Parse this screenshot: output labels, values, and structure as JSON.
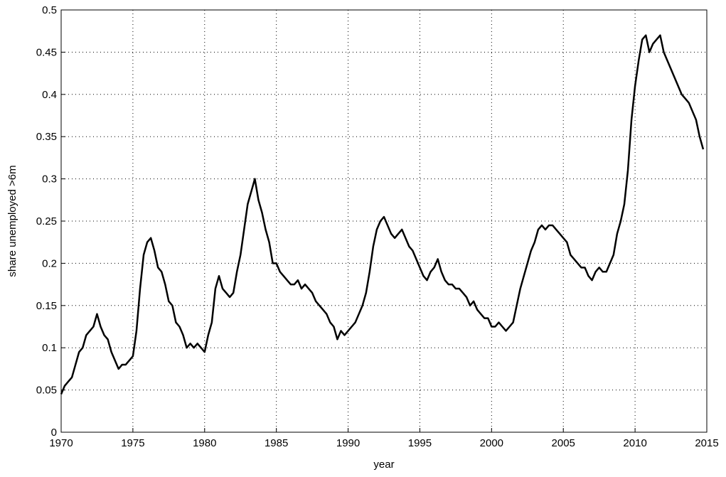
{
  "chart_data": {
    "type": "line",
    "xlabel": "year",
    "ylabel": "share unemployed >6m",
    "xlim": [
      1970,
      2015
    ],
    "xticks": [
      1970,
      1975,
      1980,
      1985,
      1990,
      1995,
      2000,
      2005,
      2010,
      2015
    ],
    "ylim": [
      0,
      0.5
    ],
    "yticks": [
      0,
      0.05,
      0.1,
      0.15,
      0.2,
      0.25,
      0.3,
      0.35,
      0.4,
      0.45,
      0.5
    ],
    "grid": true,
    "x": [
      1970,
      1970.25,
      1970.5,
      1970.75,
      1971,
      1971.25,
      1971.5,
      1971.75,
      1972,
      1972.25,
      1972.5,
      1972.75,
      1973,
      1973.25,
      1973.5,
      1973.75,
      1974,
      1974.25,
      1974.5,
      1974.75,
      1975,
      1975.25,
      1975.5,
      1975.75,
      1976,
      1976.25,
      1976.5,
      1976.75,
      1977,
      1977.25,
      1977.5,
      1977.75,
      1978,
      1978.25,
      1978.5,
      1978.75,
      1979,
      1979.25,
      1979.5,
      1979.75,
      1980,
      1980.25,
      1980.5,
      1980.75,
      1981,
      1981.25,
      1981.5,
      1981.75,
      1982,
      1982.25,
      1982.5,
      1982.75,
      1983,
      1983.25,
      1983.5,
      1983.75,
      1984,
      1984.25,
      1984.5,
      1984.75,
      1985,
      1985.25,
      1985.5,
      1985.75,
      1986,
      1986.25,
      1986.5,
      1986.75,
      1987,
      1987.25,
      1987.5,
      1987.75,
      1988,
      1988.25,
      1988.5,
      1988.75,
      1989,
      1989.25,
      1989.5,
      1989.75,
      1990,
      1990.25,
      1990.5,
      1990.75,
      1991,
      1991.25,
      1991.5,
      1991.75,
      1992,
      1992.25,
      1992.5,
      1992.75,
      1993,
      1993.25,
      1993.5,
      1993.75,
      1994,
      1994.25,
      1994.5,
      1994.75,
      1995,
      1995.25,
      1995.5,
      1995.75,
      1996,
      1996.25,
      1996.5,
      1996.75,
      1997,
      1997.25,
      1997.5,
      1997.75,
      1998,
      1998.25,
      1998.5,
      1998.75,
      1999,
      1999.25,
      1999.5,
      1999.75,
      2000,
      2000.25,
      2000.5,
      2000.75,
      2001,
      2001.25,
      2001.5,
      2001.75,
      2002,
      2002.25,
      2002.5,
      2002.75,
      2003,
      2003.25,
      2003.5,
      2003.75,
      2004,
      2004.25,
      2004.5,
      2004.75,
      2005,
      2005.25,
      2005.5,
      2005.75,
      2006,
      2006.25,
      2006.5,
      2006.75,
      2007,
      2007.25,
      2007.5,
      2007.75,
      2008,
      2008.25,
      2008.5,
      2008.75,
      2009,
      2009.25,
      2009.5,
      2009.75,
      2010,
      2010.25,
      2010.5,
      2010.75,
      2011,
      2011.25,
      2011.5,
      2011.75,
      2012,
      2012.25,
      2012.5,
      2012.75,
      2013,
      2013.25,
      2013.5,
      2013.75,
      2014,
      2014.25,
      2014.5,
      2014.75
    ],
    "series": [
      {
        "color": "#000000",
        "values": [
          0.045,
          0.055,
          0.06,
          0.065,
          0.08,
          0.095,
          0.1,
          0.115,
          0.12,
          0.125,
          0.14,
          0.125,
          0.115,
          0.11,
          0.095,
          0.085,
          0.075,
          0.08,
          0.08,
          0.085,
          0.09,
          0.12,
          0.17,
          0.21,
          0.225,
          0.23,
          0.215,
          0.195,
          0.19,
          0.175,
          0.155,
          0.15,
          0.13,
          0.125,
          0.115,
          0.1,
          0.105,
          0.1,
          0.105,
          0.1,
          0.095,
          0.115,
          0.13,
          0.17,
          0.185,
          0.17,
          0.165,
          0.16,
          0.165,
          0.19,
          0.21,
          0.24,
          0.27,
          0.285,
          0.3,
          0.275,
          0.26,
          0.24,
          0.225,
          0.2,
          0.2,
          0.19,
          0.185,
          0.18,
          0.175,
          0.175,
          0.18,
          0.17,
          0.175,
          0.17,
          0.165,
          0.155,
          0.15,
          0.145,
          0.14,
          0.13,
          0.125,
          0.11,
          0.12,
          0.115,
          0.12,
          0.125,
          0.13,
          0.14,
          0.15,
          0.165,
          0.19,
          0.22,
          0.24,
          0.25,
          0.255,
          0.245,
          0.235,
          0.23,
          0.235,
          0.24,
          0.23,
          0.22,
          0.215,
          0.205,
          0.195,
          0.185,
          0.18,
          0.19,
          0.195,
          0.205,
          0.19,
          0.18,
          0.175,
          0.175,
          0.17,
          0.17,
          0.165,
          0.16,
          0.15,
          0.155,
          0.145,
          0.14,
          0.135,
          0.135,
          0.125,
          0.125,
          0.13,
          0.125,
          0.12,
          0.125,
          0.13,
          0.15,
          0.17,
          0.185,
          0.2,
          0.215,
          0.225,
          0.24,
          0.245,
          0.24,
          0.245,
          0.245,
          0.24,
          0.235,
          0.23,
          0.225,
          0.21,
          0.205,
          0.2,
          0.195,
          0.195,
          0.185,
          0.18,
          0.19,
          0.195,
          0.19,
          0.19,
          0.2,
          0.21,
          0.235,
          0.25,
          0.27,
          0.31,
          0.37,
          0.41,
          0.44,
          0.465,
          0.47,
          0.45,
          0.46,
          0.465,
          0.47,
          0.45,
          0.44,
          0.43,
          0.42,
          0.41,
          0.4,
          0.395,
          0.39,
          0.38,
          0.37,
          0.35,
          0.335
        ]
      }
    ]
  }
}
